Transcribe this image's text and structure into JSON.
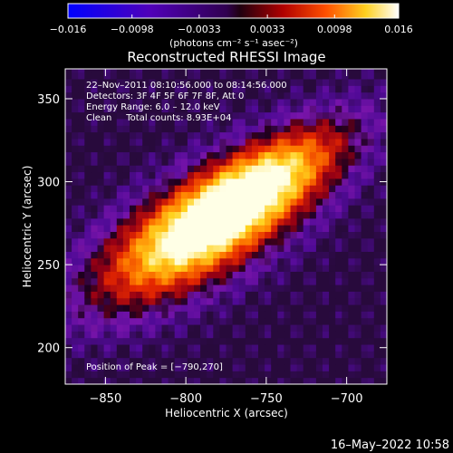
{
  "chart_data": {
    "type": "heatmap",
    "title": "Reconstructed RHESSI Image",
    "xlabel": "Heliocentric X (arcsec)",
    "ylabel": "Heliocentric Y (arcsec)",
    "xlim": [
      -875,
      -675
    ],
    "ylim": [
      178,
      368
    ],
    "x_ticks": [
      -850,
      -800,
      -750,
      -700
    ],
    "y_ticks": [
      200,
      250,
      300,
      350
    ],
    "x_tick_labels": [
      "−850",
      "−800",
      "−750",
      "−700"
    ],
    "y_tick_labels": [
      "200",
      "250",
      "300",
      "350"
    ],
    "colorbar": {
      "range": [
        -0.016,
        0.016
      ],
      "ticks": [
        -0.016,
        -0.0098,
        -0.0033,
        0.0033,
        0.0098,
        0.016
      ],
      "tick_labels": [
        "−0.016",
        "−0.0098",
        "−0.0033",
        "0.0033",
        "0.0098",
        "0.016"
      ],
      "unit_label": "(photons cm⁻² s⁻¹ asec⁻²)"
    },
    "annotations": [
      "22–Nov–2011 08:10:56.000 to 08:14:56.000",
      "Detectors: 3F 4F 5F 6F 7F 8F, Att 0",
      "Energy Range: 6.0 – 12.0 keV",
      "Clean     Total counts: 8.93E+04"
    ],
    "peak_note": "Position of Peak = [−790,270]",
    "peak": {
      "x": -790,
      "y": 270
    },
    "sources": [
      {
        "x": -792,
        "y": 270,
        "sx": 50,
        "sy": 20,
        "angle_deg": 30,
        "amp": 0.016
      },
      {
        "x": -748,
        "y": 302,
        "sx": 42,
        "sy": 16,
        "angle_deg": 30,
        "amp": 0.0095
      }
    ]
  },
  "footer": {
    "timestamp": "16–May–2022 10:58"
  }
}
